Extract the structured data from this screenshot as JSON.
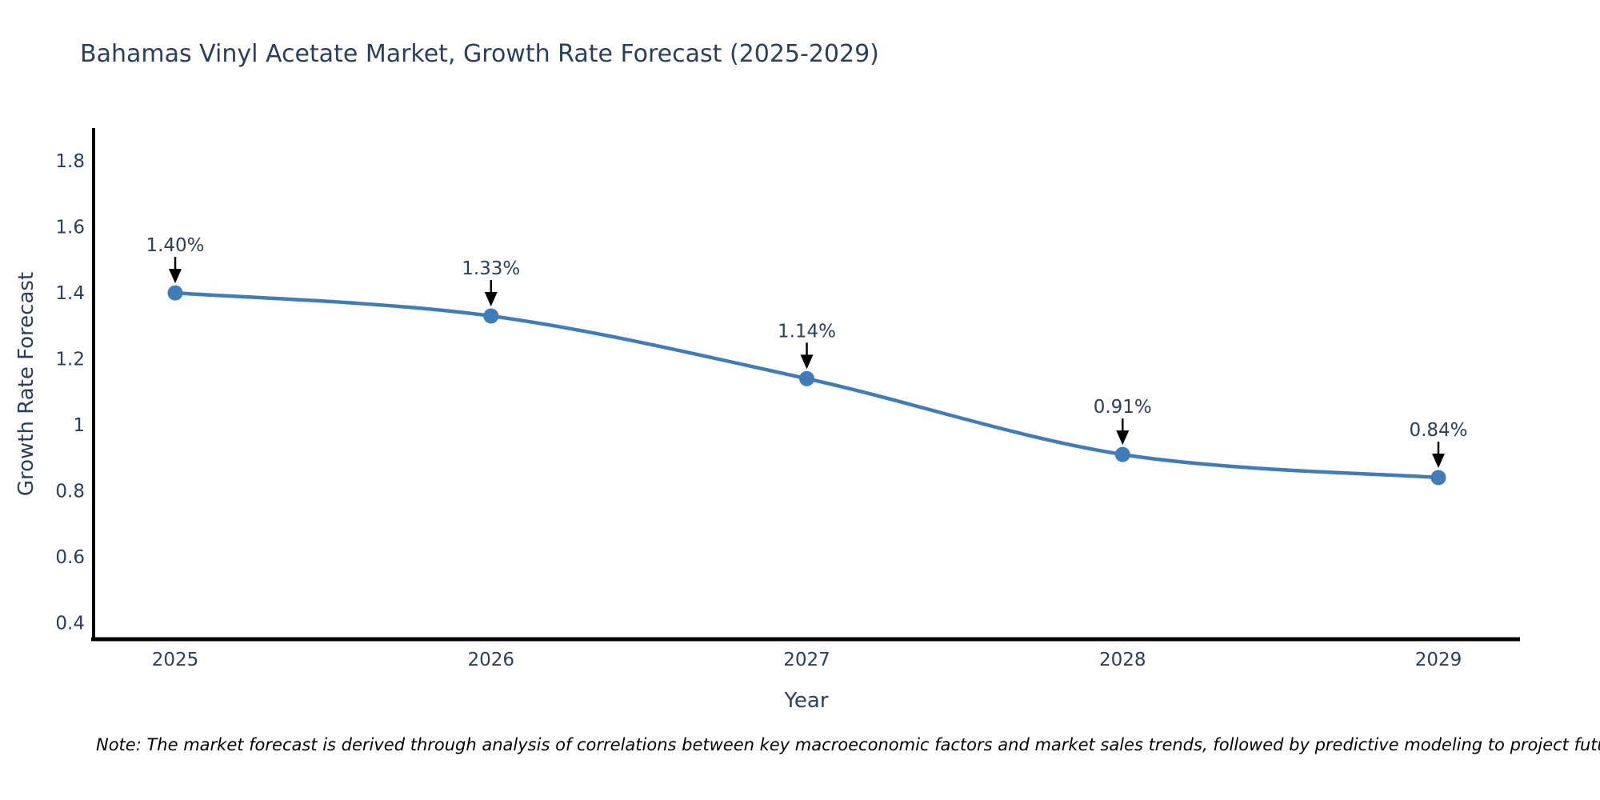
{
  "note": {
    "text": "Note: The market forecast is derived through analysis of correlations between key macroeconomic factors and market sales trends, followed by predictive modeling to project future sales"
  },
  "chart_data": {
    "type": "line",
    "line_shape": "spline",
    "title": "Bahamas Vinyl Acetate Market, Growth Rate Forecast (2025-2029)",
    "xlabel": "Year",
    "ylabel": "Growth Rate Forecast",
    "categories": [
      "2025",
      "2026",
      "2027",
      "2028",
      "2029"
    ],
    "series": [
      {
        "name": "Growth Rate Forecast",
        "values": [
          1.4,
          1.33,
          1.14,
          0.91,
          0.84
        ]
      }
    ],
    "point_labels": [
      "1.40%",
      "1.33%",
      "1.14%",
      "0.91%",
      "0.84%"
    ],
    "y_tick_labels": [
      "1.8",
      "1.6",
      "1.4",
      "1.2",
      "1",
      "0.8",
      "0.6",
      "0.4"
    ],
    "y_tick_values": [
      1.8,
      1.6,
      1.4,
      1.2,
      1.0,
      0.8,
      0.6,
      0.4
    ],
    "ylim": [
      0.35,
      1.9
    ],
    "grid": false,
    "legend": "none",
    "markers": true,
    "annotation_arrows": true,
    "colors": {
      "line": "#3e7dba",
      "marker": "#3e7dba",
      "axis_line": "#000000",
      "tick_text": "#2a3f5f",
      "annotation_text": "#2a3f5f",
      "arrow": "#000000",
      "note_text": "#000000",
      "title_text": "#2a3f5f"
    }
  }
}
